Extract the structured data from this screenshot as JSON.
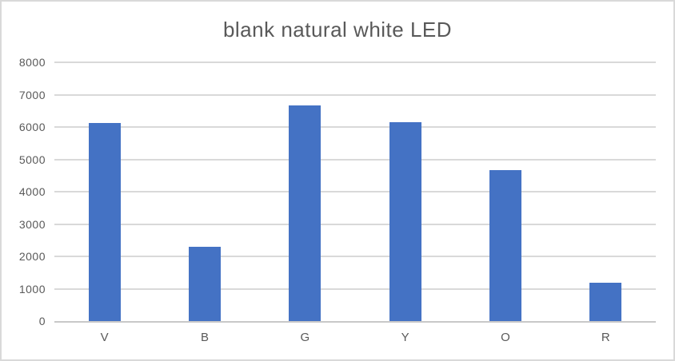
{
  "chart_data": {
    "type": "bar",
    "title": "blank natural white LED",
    "categories": [
      "V",
      "B",
      "G",
      "Y",
      "O",
      "R"
    ],
    "values": [
      6120,
      2290,
      6670,
      6160,
      4670,
      1190
    ],
    "xlabel": "",
    "ylabel": "",
    "ylim": [
      0,
      8000
    ],
    "yticks": [
      0,
      1000,
      2000,
      3000,
      4000,
      5000,
      6000,
      7000,
      8000
    ],
    "grid": true,
    "legend": false,
    "colors": {
      "bar": "#4472C4",
      "gridline": "#D9D9D9",
      "axis_line": "#C8C8C8",
      "text": "#595959",
      "border": "#D9D9D9",
      "background": "#FFFFFF"
    }
  }
}
